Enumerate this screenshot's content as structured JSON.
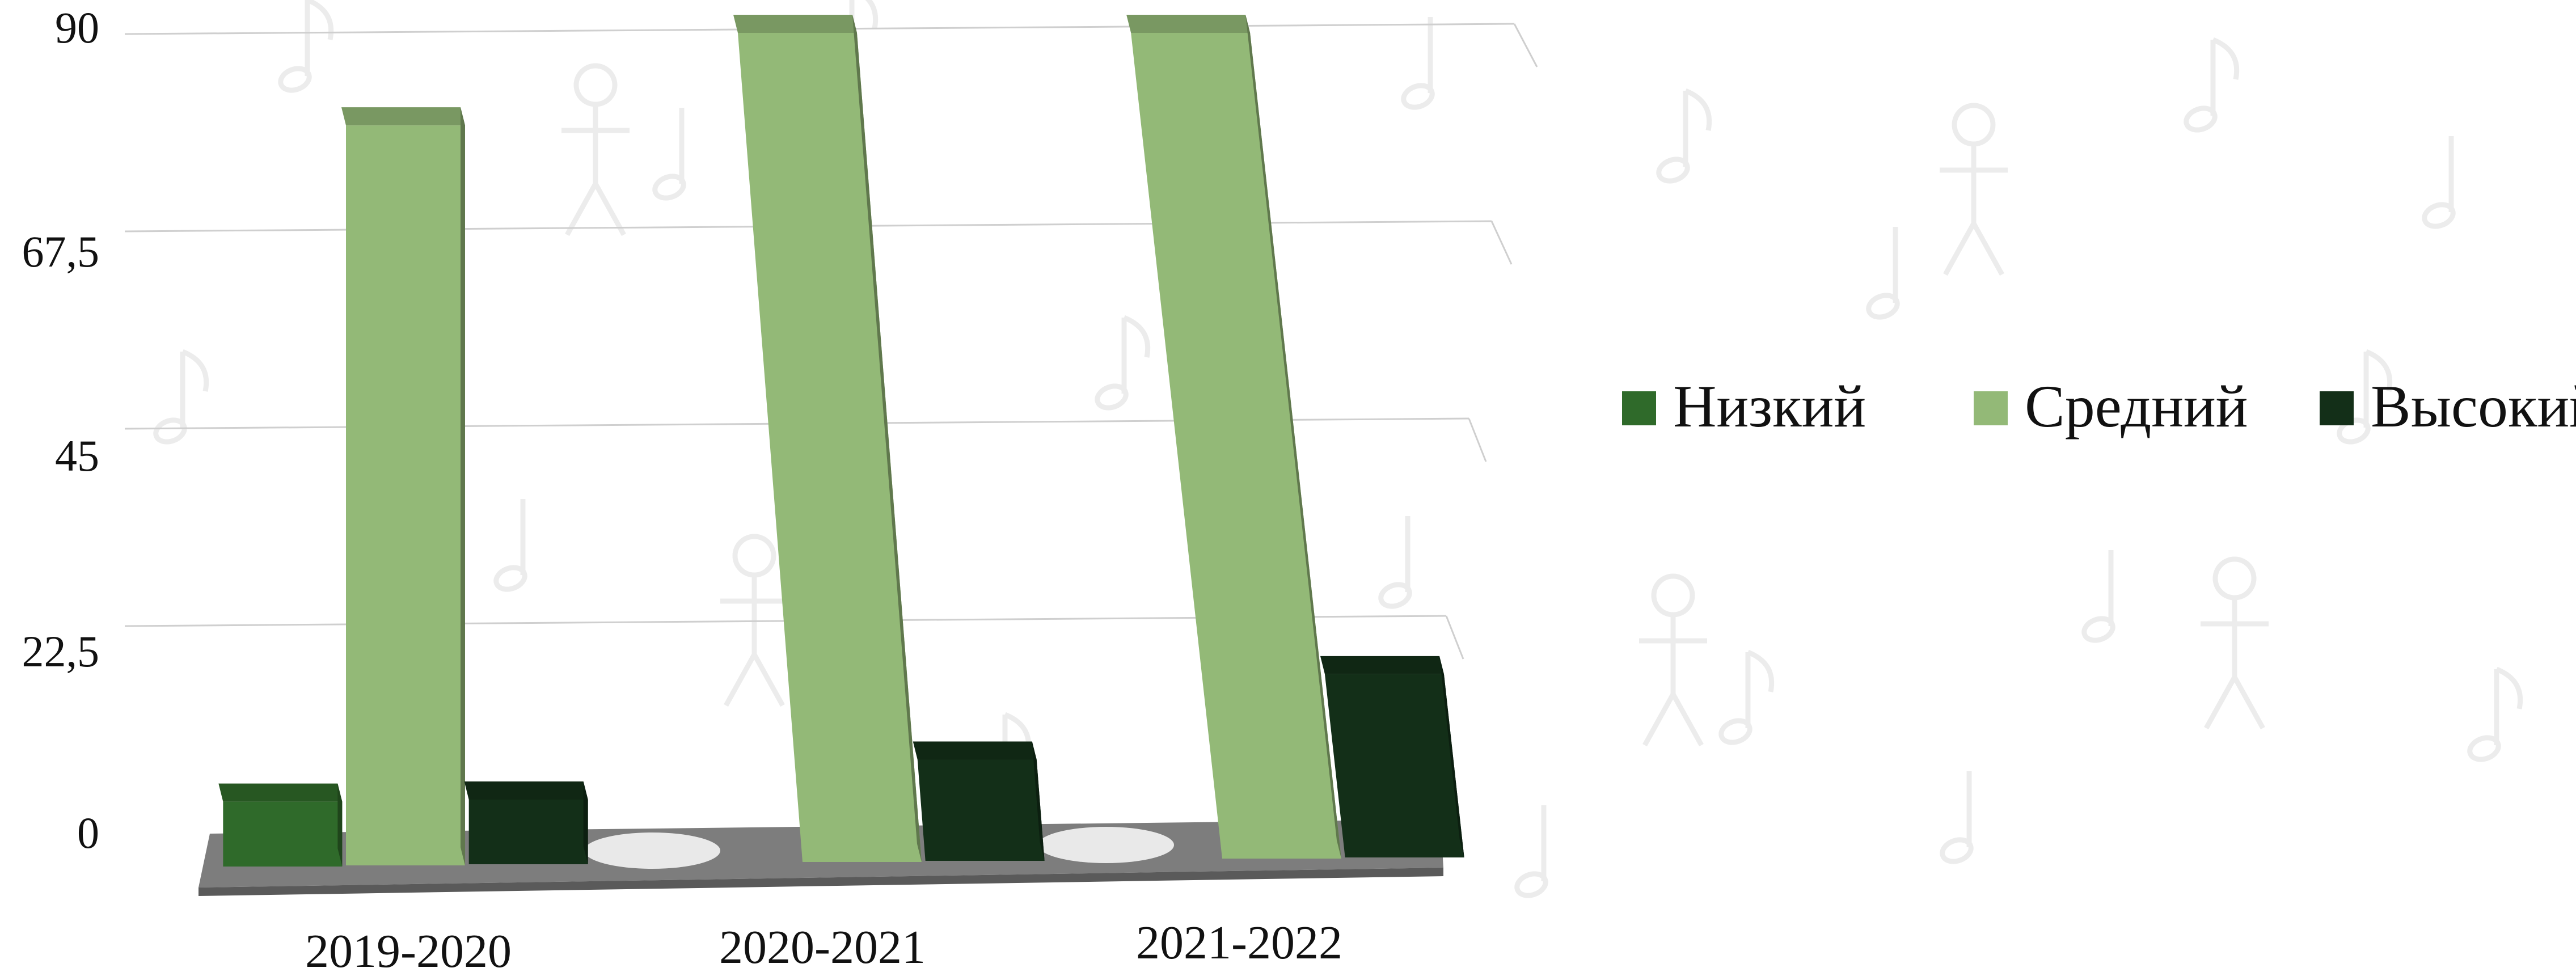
{
  "chart_data": {
    "type": "bar",
    "title": "",
    "xlabel": "",
    "ylabel": "",
    "categories": [
      "2019-2020",
      "2020-2021",
      "2021-2022"
    ],
    "series": [
      {
        "name": "Низкий",
        "values": [
          7,
          0,
          0
        ],
        "color": "#2f6a2a"
      },
      {
        "name": "Средний",
        "values": [
          80,
          90,
          90
        ],
        "color": "#93b977"
      },
      {
        "name": "Высокий",
        "values": [
          7,
          11,
          20
        ],
        "color": "#132f18"
      }
    ],
    "y_ticks": [
      "0",
      "22,5",
      "45",
      "67,5",
      "90"
    ],
    "ylim": [
      0,
      90
    ],
    "grid": true,
    "legend_position": "right",
    "three_d": true,
    "background_pattern": "music-doodles"
  }
}
